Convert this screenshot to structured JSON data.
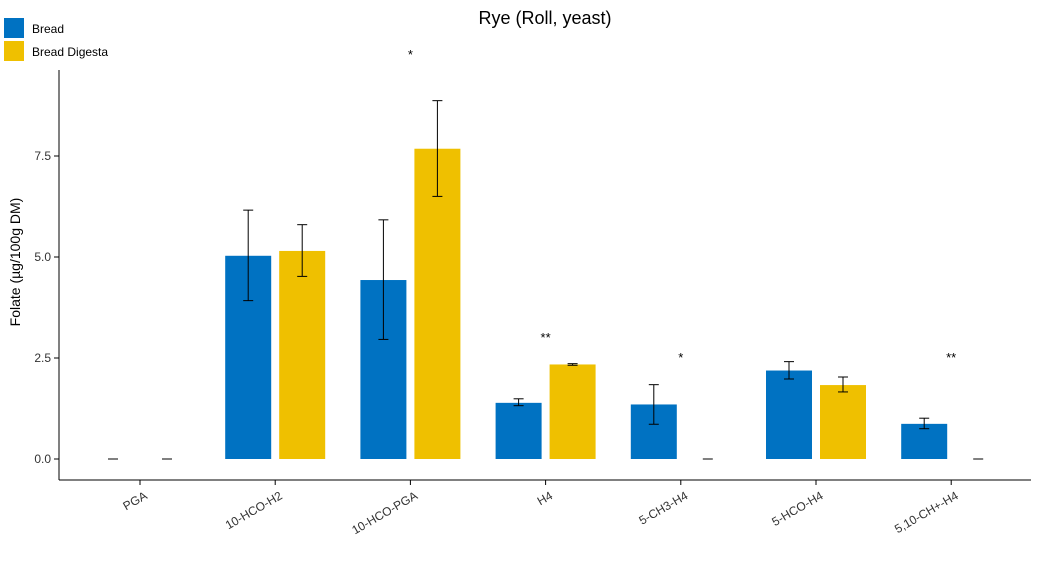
{
  "chart_data": {
    "type": "bar",
    "title": "Rye (Roll, yeast)",
    "ylabel": "Folate (µg/100g DM)",
    "xlabel": "",
    "ylim": [
      -0.5,
      9.6
    ],
    "yticks": [
      0.0,
      2.5,
      5.0,
      7.5
    ],
    "ytick_labels": [
      "0.0",
      "2.5",
      "5.0",
      "7.5"
    ],
    "categories": [
      "PGA",
      "10-HCO-H2",
      "10-HCO-PGA",
      "H4",
      "5-CH3-H4",
      "5-HCO-H4",
      "5,10-CH+-H4"
    ],
    "series": [
      {
        "name": "Bread",
        "color": "#0072C2",
        "values": [
          0.0,
          5.03,
          4.43,
          1.39,
          1.35,
          2.19,
          0.87
        ],
        "error_low": [
          0.0,
          3.92,
          2.96,
          1.32,
          0.86,
          1.98,
          0.75
        ],
        "error_high": [
          0.0,
          6.16,
          5.92,
          1.49,
          1.84,
          2.41,
          1.01
        ]
      },
      {
        "name": "Bread Digesta",
        "color": "#EFC000",
        "values": [
          0.0,
          5.15,
          7.68,
          2.34,
          0.0,
          1.83,
          0.0
        ],
        "error_low": [
          0.0,
          4.52,
          6.5,
          2.32,
          0.0,
          1.66,
          0.0
        ],
        "error_high": [
          0.0,
          5.8,
          8.87,
          2.36,
          0.0,
          2.03,
          0.0
        ]
      }
    ],
    "significance": [
      {
        "category": "10-HCO-PGA",
        "label": "*",
        "y": 10.0
      },
      {
        "category": "H4",
        "label": "**",
        "y": 3.0
      },
      {
        "category": "5-CH3-H4",
        "label": "*",
        "y": 2.5
      },
      {
        "category": "5,10-CH+-H4",
        "label": "**",
        "y": 2.5
      }
    ],
    "legend": "top-left",
    "grid": false
  }
}
